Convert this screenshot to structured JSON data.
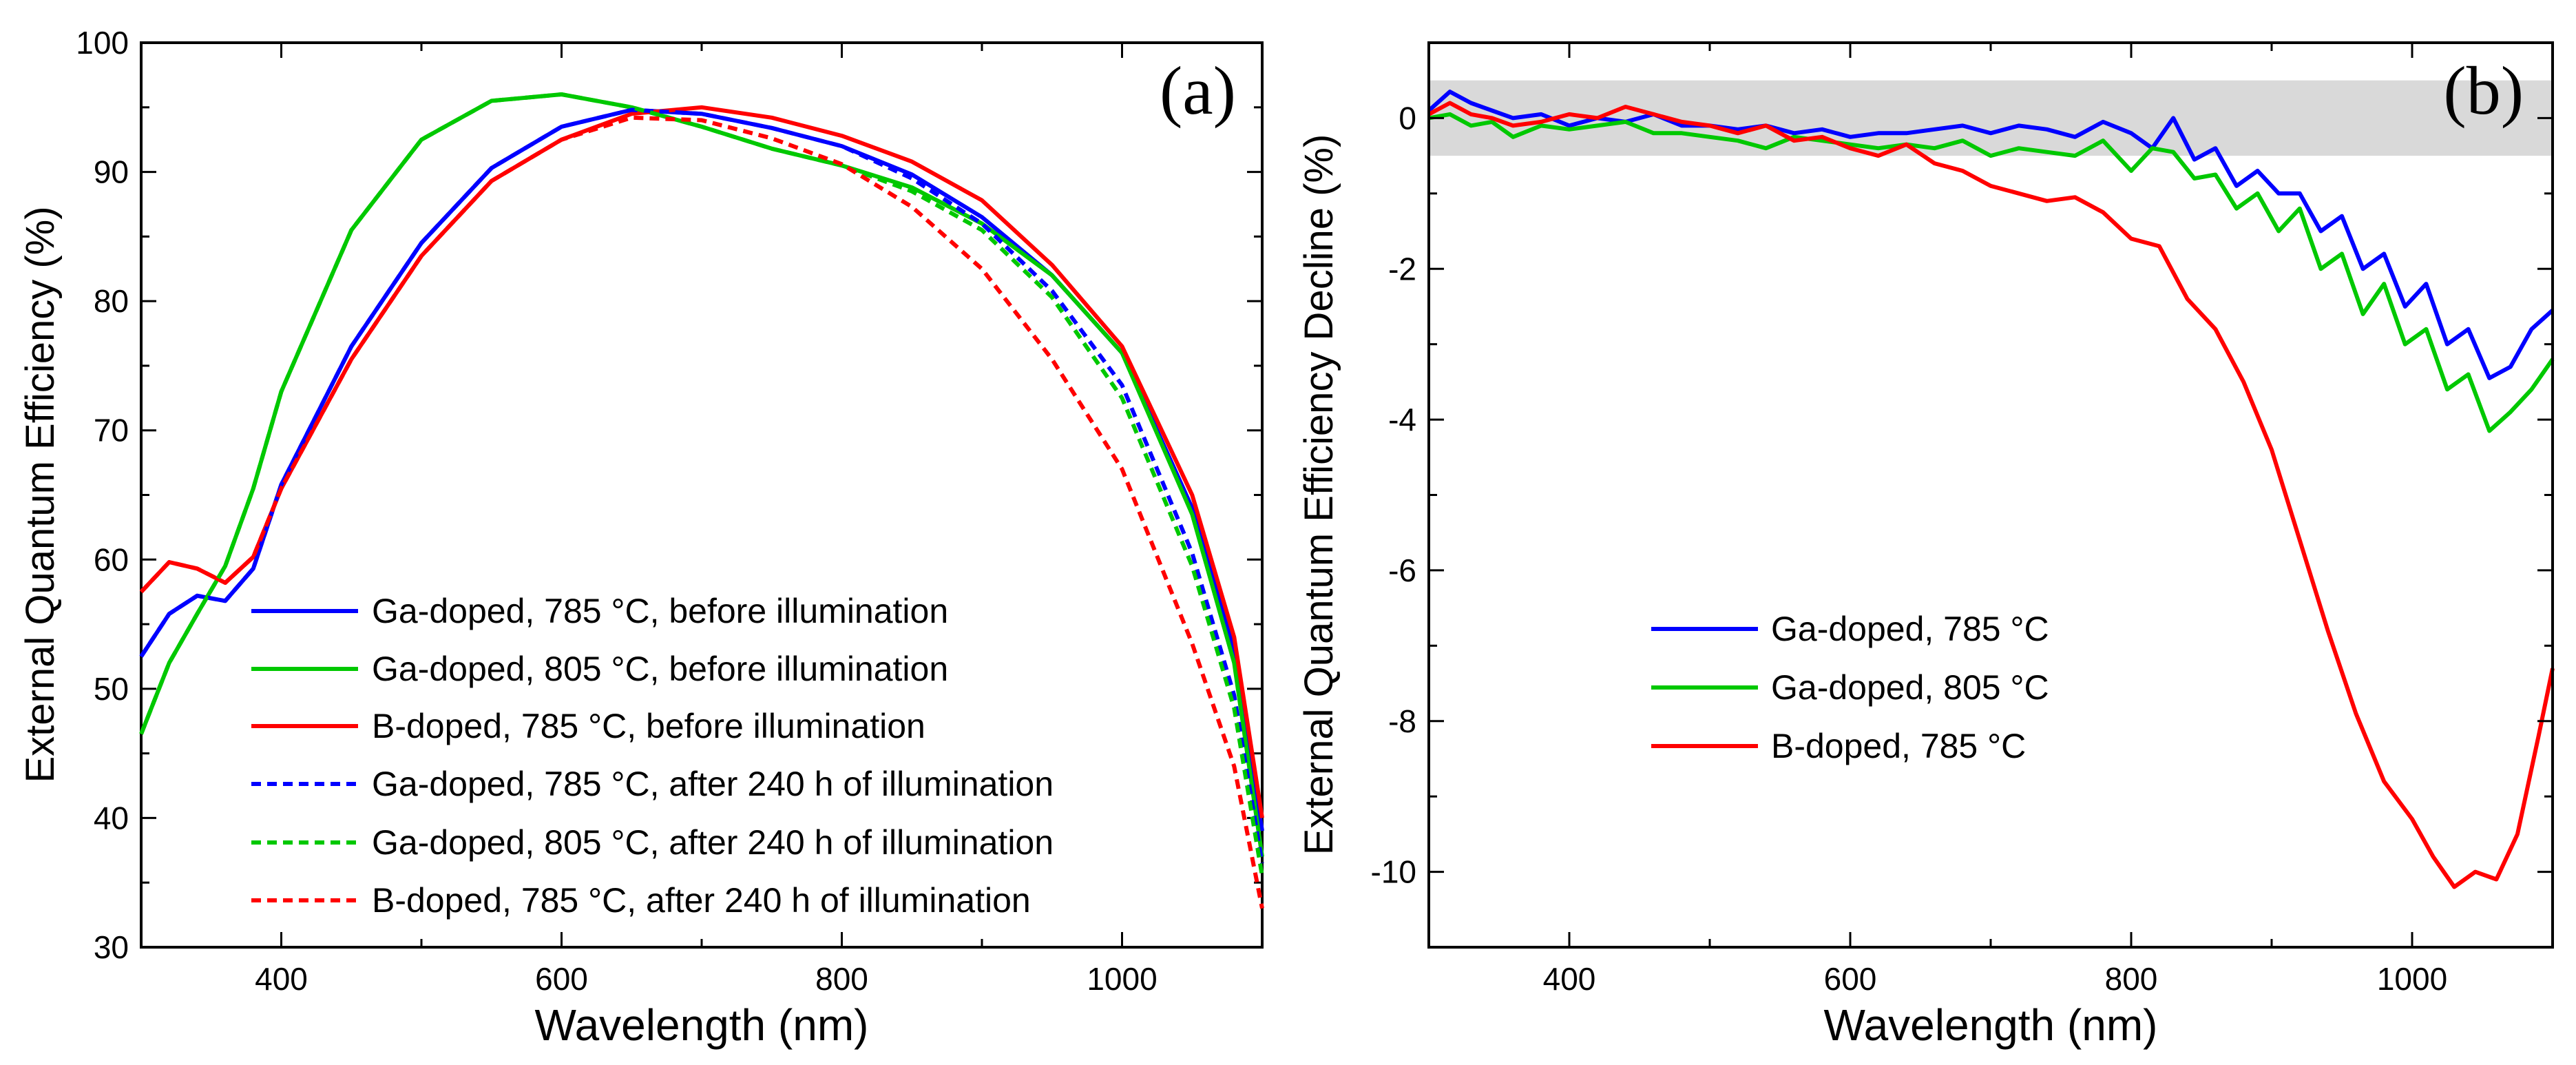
{
  "figure": {
    "background": "#ffffff"
  },
  "chart_data": [
    {
      "type": "line",
      "panel_label": "(a)",
      "xlabel": "Wavelength (nm)",
      "ylabel": "External Quantum Efficiency (%)",
      "xlim": [
        300,
        1100
      ],
      "ylim": [
        30,
        100
      ],
      "xticks": [
        400,
        600,
        800,
        1000
      ],
      "yticks": [
        30,
        40,
        50,
        60,
        70,
        80,
        90,
        100
      ],
      "grid": false,
      "legend_position": "lower-center",
      "series": [
        {
          "name": "Ga-doped, 785 °C, before illumination",
          "color": "#0000ff",
          "dash": "solid",
          "x": [
            300,
            320,
            340,
            360,
            380,
            400,
            450,
            500,
            550,
            600,
            650,
            700,
            750,
            800,
            850,
            900,
            950,
            1000,
            1050,
            1080,
            1100
          ],
          "y": [
            52.5,
            55.8,
            57.2,
            56.8,
            59.3,
            65.8,
            76.5,
            84.5,
            90.3,
            93.5,
            94.8,
            94.5,
            93.4,
            92.0,
            89.8,
            86.5,
            82.0,
            76.0,
            64.0,
            53.0,
            39.0
          ]
        },
        {
          "name": "Ga-doped, 805 °C, before illumination",
          "color": "#00c800",
          "dash": "solid",
          "x": [
            300,
            320,
            340,
            360,
            380,
            400,
            450,
            500,
            550,
            600,
            650,
            700,
            750,
            800,
            850,
            900,
            950,
            1000,
            1050,
            1080,
            1100
          ],
          "y": [
            46.5,
            52.0,
            55.8,
            59.5,
            65.5,
            73.0,
            85.5,
            92.5,
            95.5,
            96.0,
            95.0,
            93.5,
            91.8,
            90.5,
            88.8,
            86.0,
            82.0,
            76.0,
            63.5,
            52.0,
            37.0
          ]
        },
        {
          "name": "B-doped, 785 °C, before illumination",
          "color": "#ff0000",
          "dash": "solid",
          "x": [
            300,
            320,
            340,
            360,
            380,
            400,
            450,
            500,
            550,
            600,
            650,
            700,
            750,
            800,
            850,
            900,
            950,
            1000,
            1050,
            1080,
            1100
          ],
          "y": [
            57.5,
            59.8,
            59.3,
            58.2,
            60.2,
            65.5,
            75.5,
            83.5,
            89.3,
            92.5,
            94.5,
            95.0,
            94.2,
            92.8,
            90.8,
            87.8,
            82.8,
            76.5,
            65.0,
            54.0,
            40.0
          ]
        },
        {
          "name": "Ga-doped, 785 °C, after 240 h of illumination",
          "color": "#0000ff",
          "dash": "dashed",
          "x": [
            300,
            320,
            340,
            360,
            380,
            400,
            450,
            500,
            550,
            600,
            650,
            700,
            750,
            800,
            850,
            900,
            950,
            1000,
            1050,
            1080,
            1100
          ],
          "y": [
            52.5,
            55.8,
            57.2,
            56.8,
            59.3,
            65.8,
            76.5,
            84.5,
            90.3,
            93.5,
            94.8,
            94.5,
            93.4,
            92.0,
            89.5,
            86.0,
            80.8,
            73.5,
            60.5,
            49.5,
            36.5
          ]
        },
        {
          "name": "Ga-doped, 805 °C, after 240 h of illumination",
          "color": "#00c800",
          "dash": "dashed",
          "x": [
            300,
            320,
            340,
            360,
            380,
            400,
            450,
            500,
            550,
            600,
            650,
            700,
            750,
            800,
            850,
            900,
            950,
            1000,
            1050,
            1080,
            1100
          ],
          "y": [
            46.5,
            52.0,
            55.8,
            59.5,
            65.5,
            73.0,
            85.5,
            92.5,
            95.5,
            96.0,
            95.0,
            93.5,
            91.8,
            90.5,
            88.5,
            85.5,
            80.3,
            72.5,
            59.5,
            48.5,
            35.5
          ]
        },
        {
          "name": "B-doped, 785 °C, after 240 h of illumination",
          "color": "#ff0000",
          "dash": "dashed",
          "x": [
            300,
            320,
            340,
            360,
            380,
            400,
            450,
            500,
            550,
            600,
            650,
            700,
            750,
            800,
            850,
            900,
            950,
            1000,
            1050,
            1080,
            1100
          ],
          "y": [
            57.5,
            59.8,
            59.3,
            58.2,
            60.2,
            65.5,
            75.5,
            83.5,
            89.3,
            92.5,
            94.2,
            94.0,
            92.6,
            90.6,
            87.3,
            82.5,
            75.5,
            67.0,
            53.5,
            44.0,
            33.0
          ]
        }
      ]
    },
    {
      "type": "line",
      "panel_label": "(b)",
      "xlabel": "Wavelength (nm)",
      "ylabel": "External Quantum Efficiency Decline (%)",
      "xlim": [
        300,
        1100
      ],
      "ylim": [
        -11,
        1
      ],
      "xticks": [
        400,
        600,
        800,
        1000
      ],
      "yticks": [
        0,
        -2,
        -4,
        -6,
        -8,
        -10
      ],
      "grid": false,
      "shaded_band": {
        "y_from": -0.5,
        "y_to": 0.5,
        "color": "#d9d9d9"
      },
      "legend_position": "center-left",
      "series": [
        {
          "name": "Ga-doped, 785 °C",
          "color": "#0000ff",
          "x": [
            300,
            315,
            330,
            345,
            360,
            380,
            400,
            420,
            440,
            460,
            480,
            500,
            520,
            540,
            560,
            580,
            600,
            620,
            640,
            660,
            680,
            700,
            720,
            740,
            760,
            780,
            800,
            815,
            830,
            845,
            860,
            875,
            890,
            905,
            920,
            935,
            950,
            965,
            980,
            995,
            1010,
            1025,
            1040,
            1055,
            1070,
            1085,
            1100
          ],
          "y": [
            0.1,
            0.35,
            0.2,
            0.1,
            0.0,
            0.05,
            -0.1,
            0.0,
            -0.05,
            0.05,
            -0.1,
            -0.1,
            -0.15,
            -0.1,
            -0.2,
            -0.15,
            -0.25,
            -0.2,
            -0.2,
            -0.15,
            -0.1,
            -0.2,
            -0.1,
            -0.15,
            -0.25,
            -0.05,
            -0.2,
            -0.4,
            0.0,
            -0.55,
            -0.4,
            -0.9,
            -0.7,
            -1.0,
            -1.0,
            -1.5,
            -1.3,
            -2.0,
            -1.8,
            -2.5,
            -2.2,
            -3.0,
            -2.8,
            -3.45,
            -3.3,
            -2.8,
            -2.55
          ]
        },
        {
          "name": "Ga-doped, 805 °C",
          "color": "#00c800",
          "x": [
            300,
            315,
            330,
            345,
            360,
            380,
            400,
            420,
            440,
            460,
            480,
            500,
            520,
            540,
            560,
            580,
            600,
            620,
            640,
            660,
            680,
            700,
            720,
            740,
            760,
            780,
            800,
            815,
            830,
            845,
            860,
            875,
            890,
            905,
            920,
            935,
            950,
            965,
            980,
            995,
            1010,
            1025,
            1040,
            1055,
            1070,
            1085,
            1100
          ],
          "y": [
            0.0,
            0.05,
            -0.1,
            -0.05,
            -0.25,
            -0.1,
            -0.15,
            -0.1,
            -0.05,
            -0.2,
            -0.2,
            -0.25,
            -0.3,
            -0.4,
            -0.25,
            -0.3,
            -0.35,
            -0.4,
            -0.35,
            -0.4,
            -0.3,
            -0.5,
            -0.4,
            -0.45,
            -0.5,
            -0.3,
            -0.7,
            -0.4,
            -0.45,
            -0.8,
            -0.75,
            -1.2,
            -1.0,
            -1.5,
            -1.2,
            -2.0,
            -1.8,
            -2.6,
            -2.2,
            -3.0,
            -2.8,
            -3.6,
            -3.4,
            -4.15,
            -3.9,
            -3.6,
            -3.2
          ]
        },
        {
          "name": "B-doped, 785 °C",
          "color": "#ff0000",
          "x": [
            300,
            315,
            330,
            345,
            360,
            380,
            400,
            420,
            440,
            460,
            480,
            500,
            520,
            540,
            560,
            580,
            600,
            620,
            640,
            660,
            680,
            700,
            720,
            740,
            760,
            780,
            800,
            820,
            840,
            860,
            880,
            900,
            920,
            940,
            960,
            980,
            1000,
            1015,
            1030,
            1045,
            1060,
            1075,
            1090,
            1100
          ],
          "y": [
            0.05,
            0.2,
            0.05,
            0.0,
            -0.1,
            -0.05,
            0.05,
            0.0,
            0.15,
            0.05,
            -0.05,
            -0.1,
            -0.2,
            -0.1,
            -0.3,
            -0.25,
            -0.4,
            -0.5,
            -0.35,
            -0.6,
            -0.7,
            -0.9,
            -1.0,
            -1.1,
            -1.05,
            -1.25,
            -1.6,
            -1.7,
            -2.4,
            -2.8,
            -3.5,
            -4.4,
            -5.6,
            -6.8,
            -7.9,
            -8.8,
            -9.3,
            -9.8,
            -10.2,
            -10.0,
            -10.1,
            -9.5,
            -8.2,
            -7.3
          ]
        }
      ]
    }
  ]
}
